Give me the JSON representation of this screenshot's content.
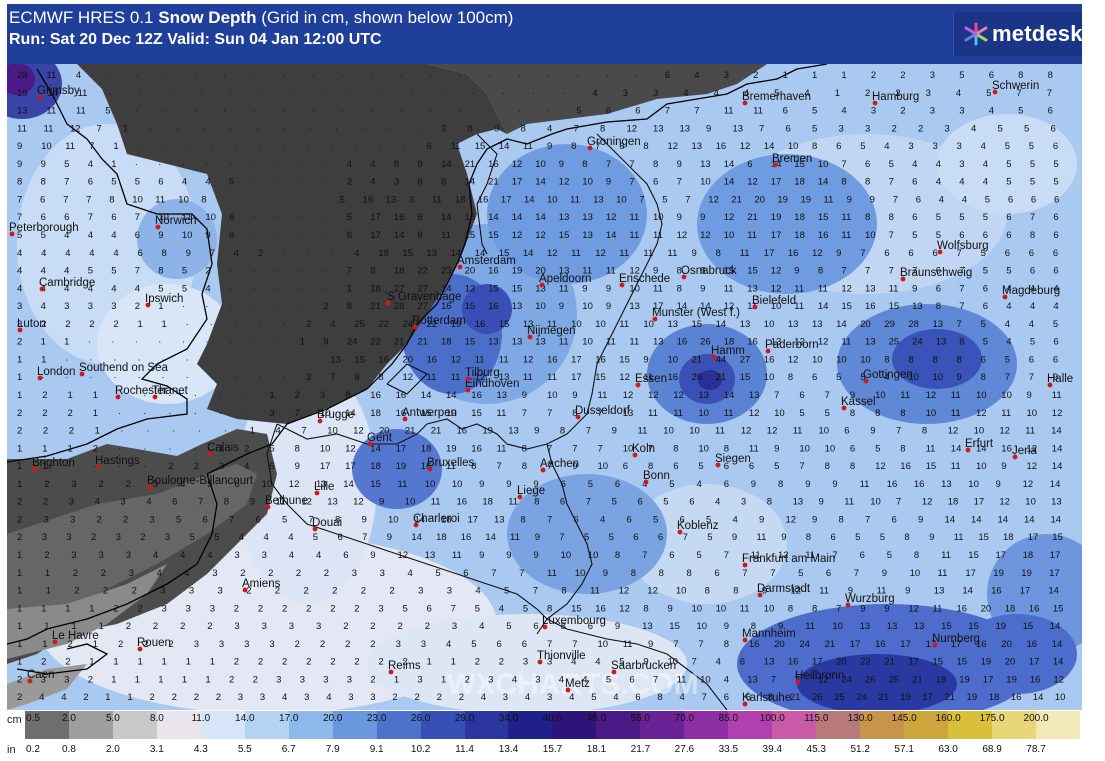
{
  "header": {
    "line1_prefix": "ECMWF HRES 0.1 ",
    "line1_bold": "Snow Depth",
    "line1_suffix": " (Grid in cm, shown below 100cm)",
    "line2": "Run: Sat 20 Dec 12Z Valid: Sun 04 Jan 12:00 UTC"
  },
  "logo": {
    "text": "metdesk",
    "icon": "metdesk-star-icon"
  },
  "watermark": "WXCHARTS.COM",
  "map": {
    "cities": [
      {
        "name": "Grimsby"
      },
      {
        "name": "Peterborough"
      },
      {
        "name": "Norwich"
      },
      {
        "name": "Cambridge"
      },
      {
        "name": "Ipswich"
      },
      {
        "name": "Luton"
      },
      {
        "name": "London"
      },
      {
        "name": "Southend on Sea"
      },
      {
        "name": "Thanet"
      },
      {
        "name": "Rochester"
      },
      {
        "name": "Brighton"
      },
      {
        "name": "Hastings"
      },
      {
        "name": "Calais"
      },
      {
        "name": "Boulogne-Billancourt"
      },
      {
        "name": "Bethune"
      },
      {
        "name": "Lille"
      },
      {
        "name": "Douai"
      },
      {
        "name": "Amiens"
      },
      {
        "name": "Le Havre"
      },
      {
        "name": "Rouen"
      },
      {
        "name": "Caen"
      },
      {
        "name": "Reims"
      },
      {
        "name": "Metz"
      },
      {
        "name": "Thionville"
      },
      {
        "name": "Luxembourg"
      },
      {
        "name": "Saarbrucken"
      },
      {
        "name": "Charleroi"
      },
      {
        "name": "Bruxelles"
      },
      {
        "name": "Gent"
      },
      {
        "name": "Brugge"
      },
      {
        "name": "Antwerpen"
      },
      {
        "name": "Liege"
      },
      {
        "name": "Aachen"
      },
      {
        "name": "Bonn"
      },
      {
        "name": "Koln"
      },
      {
        "name": "Koblenz"
      },
      {
        "name": "Siegen"
      },
      {
        "name": "Dusseldorf"
      },
      {
        "name": "Essen"
      },
      {
        "name": "Eindhoven"
      },
      {
        "name": "Tilburg"
      },
      {
        "name": "Nijmegen"
      },
      {
        "name": "Rotterdam"
      },
      {
        "name": "'S Gravenhage"
      },
      {
        "name": "Amsterdam"
      },
      {
        "name": "Apeldoorn"
      },
      {
        "name": "Enschede"
      },
      {
        "name": "Groningen"
      },
      {
        "name": "Munster (West f.)"
      },
      {
        "name": "Osnabruck"
      },
      {
        "name": "Bielefeld"
      },
      {
        "name": "Paderborn"
      },
      {
        "name": "Hamm"
      },
      {
        "name": "Kassel"
      },
      {
        "name": "Gottingen"
      },
      {
        "name": "Bremerhaven"
      },
      {
        "name": "Bremen"
      },
      {
        "name": "Hamburg"
      },
      {
        "name": "Schwerin"
      },
      {
        "name": "Wolfsburg"
      },
      {
        "name": "Braunschweig"
      },
      {
        "name": "Magdeburg"
      },
      {
        "name": "Halle"
      },
      {
        "name": "Erfurt"
      },
      {
        "name": "Jena"
      },
      {
        "name": "Frankfurt am Main"
      },
      {
        "name": "Darmstadt"
      },
      {
        "name": "Mannheim"
      },
      {
        "name": "Wurzburg"
      },
      {
        "name": "Nurnberg"
      },
      {
        "name": "Heilbronn"
      },
      {
        "name": "Karlsruhe"
      }
    ]
  },
  "legend": {
    "cm_label": "cm",
    "in_label": "in",
    "cm_values": [
      "0.5",
      "2.0",
      "5.0",
      "8.0",
      "11.0",
      "14.0",
      "17.0",
      "20.0",
      "23.0",
      "26.0",
      "29.0",
      "34.0",
      "40.0",
      "46.0",
      "55.0",
      "70.0",
      "85.0",
      "100.0",
      "115.0",
      "130.0",
      "145.0",
      "160.0",
      "175.0",
      "200.0"
    ],
    "in_values": [
      "0.2",
      "0.8",
      "2.0",
      "3.1",
      "4.3",
      "5.5",
      "6.7",
      "7.9",
      "9.1",
      "10.2",
      "11.4",
      "13.4",
      "15.7",
      "18.1",
      "21.7",
      "27.6",
      "33.5",
      "39.4",
      "45.3",
      "51.2",
      "57.1",
      "63.0",
      "68.9",
      "78.7"
    ],
    "colors": [
      "#6e6e6e",
      "#9e9e9e",
      "#c9c9c9",
      "#ece4ec",
      "#d6e6f8",
      "#b4d2f2",
      "#8db8ea",
      "#6a98de",
      "#4b73cc",
      "#3650b8",
      "#2a35a0",
      "#20208a",
      "#2e1478",
      "#4a1a88",
      "#6a2396",
      "#8e2ea4",
      "#b040ae",
      "#c85aa8",
      "#b87a78",
      "#c6944c",
      "#cca63a",
      "#d8c038",
      "#e8d678",
      "#f2e8b8"
    ]
  },
  "grid_values": [
    "28 11 4 . . . . . . . . . . . . . . . . . . . 6 4 3 2 1 1 1 2 2 3 5 6 8 8",
    "19 14 11 . . . . . . . . . . . . . . . . 4 3 3 4 4 4 5 4 1 2 2 3 4 5 7 7",
    "13 11 11 5 . . . . . . . . . . . . . . . 5 6 6 7 7 11 11 6 5 4 3 2 3 3 4 5 6",
    "11 11 12 7 1 . . . . . . . . . . . 3 8 9 8 4 7 8 12 13 13 9 13 7 6 5 3 3 2 2 3 4 5 5 6",
    "9 10 11 7 1 . . . . . . . . . . . . 6 11 15 14 11 9 8 7 6 8 12 13 16 12 14 10 8 6 5 4 3 3 3 4 5 5 6",
    "9 9 5 4 1 . . . . . . . . . 4 4 8 9 14 21 16 12 10 9 8 7 7 8 9 13 14 6 14 15 10 7 6 5 4 4 3 4 5 5 5",
    "8 8 7 6 5 5 6 4 4 5 . . . . 2 4 3 6 8 14 21 17 14 12 10 9 7 6 7 10 14 12 17 18 14 8 8 7 6 4 4 4 5 5 5",
    "7 6 7 7 8 10 11 10 8 . . . . . 5 16 13 3 11 18 16 17 14 10 11 13 10 7 5 7 12 21 20 19 19 11 9 9 7 6 4 4 5 6 6 6",
    "7 6 6 7 6 7 10 11 10 6 . . . . 5 17 16 6 14 16 14 14 14 13 13 12 11 10 9 9 12 21 19 18 15 11 8 8 6 5 5 5 6 7 6",
    "5 5 4 4 4 6 9 10 9 6 . . . . 6 17 14 6 11 15 15 12 12 15 13 14 11 11 12 12 10 11 17 18 16 11 10 7 5 5 6 6 6 8 6",
    "4 4 4 4 4 6 8 9 7 4 2 . . . 4 18 15 13 14 14 15 14 12 11 12 11 11 11 9 8 11 17 16 12 9 7 6 6 6 7 5 6 6 6",
    "4 4 4 5 5 7 8 5 2 . . . . . 7 8 18 22 23 20 16 19 20 13 11 11 12 9 8 8 15 15 12 9 8 7 7 7 7 6 7 5 5 6 6",
    "4 4 4 4 4 4 5 5 4 . . . . . 1 18 27 27 14 13 15 15 13 11 9 9 10 11 8 9 11 13 12 11 11 12 13 11 9 6 7 6 4 4 4",
    "3 4 3 3 3 2 1 . . . . . . 2 8 21 28 27 16 15 16 13 10 9 10 9 13 17 14 14 12 11 10 11 14 15 16 15 13 8 7 6 4 4 4",
    "3 2 2 2 2 1 1 . . . . . 2 4 25 22 24 22 19 16 15 13 11 10 10 11 10 13 15 14 13 10 13 13 14 20 29 28 13 7 5 4 4 5",
    "2 1 1 . . . . . . . . . 1 9 24 22 21 21 18 15 13 13 13 11 10 11 11 13 16 26 18 16 13 12 12 11 13 25 24 13 8 5 4 5 6",
    "1 1 . . . . . . . . . . . 13 15 16 20 16 12 11 11 12 16 17 16 15 9 10 21 44 27 16 12 10 10 10 8 8 8 8 6 5 6 6",
    "1 . . . . . . . . . . . 3 7 9 8 12 11 11 12 13 11 11 17 15 12 11 16 28 21 15 10 8 6 5 5 4 10 10 9 8 7 7 9",
    "1 2 1 1 . . . . . . 1 2 3 8 16 16 14 14 16 13 9 10 9 11 12 12 12 13 14 13 7 6 7 9 10 11 12 11 10 10 9 11",
    "2 2 2 1 . . . . . . 3 7 10 14 18 16 15 19 15 11 7 7 8 7 13 11 11 10 11 12 10 5 5 8 8 8 10 11 12 11 10 12",
    "2 2 2 1 . . . . . 1 4 7 10 12 20 21 21 16 19 13 9 8 7 9 11 10 10 11 12 12 11 10 6 9 7 8 12 10 12 11 14",
    "1 1 1 2 . . . . 1 2 5 8 10 12 14 17 18 19 16 11 8 7 7 7 10 7 8 10 8 11 9 10 10 6 5 8 11 14 14 16 12 14",
    "1 1 . . . . 2 2 3 4 5 9 17 17 18 19 16 11 8 7 8 7 9 10 6 8 6 5 6 6 5 7 8 8 12 16 15 11 10 9 12 14",
    "1 2 3 2 2 3 4 5 6 10 12 13 14 15 11 10 10 9 9 9 6 5 6 4 5 4 6 9 8 9 9 11 16 16 13 10 9 12 14",
    "2 2 3 4 3 4 6 7 8 9 11 12 13 12 9 10 11 16 18 11 8 6 7 5 6 5 6 4 3 8 13 9 11 10 7 12 18 17 12 10 13",
    "2 3 3 2 2 3 5 6 7 6 5 7 8 9 10 14 18 17 13 8 7 6 4 6 5 6 5 4 9 12 9 8 7 6 9 14 14 14 14 14",
    "2 3 3 2 3 2 3 5 5 4 4 4 5 6 7 9 14 18 16 14 11 9 7 5 5 6 6 7 5 9 11 9 8 6 5 5 8 9 11 15 18 17 15",
    "1 2 3 3 3 4 4 4 3 3 4 4 6 9 12 13 11 9 9 9 10 10 8 7 6 5 7 11 12 11 7 6 5 8 11 15 17 18 17",
    "1 1 2 2 3 4 4 3 2 2 2 2 3 3 4 5 6 7 7 11 10 9 8 8 8 6 7 7 5 6 7 9 10 11 17 19 19 17",
    "1 1 2 2 2 3 3 3 2 2 2 2 2 2 3 3 4 5 7 8 11 12 12 10 8 8 9 12 11 9 11 9 13 14 16 17 14",
    "1 1 1 1 2 2 3 3 3 2 2 2 2 2 2 3 5 6 7 5 4 5 8 15 16 12 8 9 10 10 11 10 8 8 7 9 9 12 11 16 20 18 16 15",
    "1 1 1 1 2 2 2 2 3 3 3 3 2 2 2 2 3 4 5 6 8 6 9 13 15 10 9 8 9 11 10 13 13 13 15 15 19 15 14",
    "1 1 2 1 2 2 2 3 3 3 3 2 2 2 2 3 3 4 5 6 6 7 7 10 11 9 7 7 8 16 20 24 21 17 16 17 17 17 16 20 16 14",
    "1 2 2 1 1 1 1 1 1 2 2 2 2 2 2 2 2 1 1 2 2 3 3 4 4 5 9 10 7 4 6 13 16 17 20 22 21 17 15 15 19 20 17 14",
    "2 3 3 2 1 1 1 1 1 2 2 3 3 3 3 2 1 3 1 2 3 4 3 4 4 5 6 7 11 10 4 13 7 7 12 24 26 25 21 19 19 17 19 16 12",
    "2 4 4 2 1 1 2 2 2 2 3 3 4 3 4 3 3 2 2 2 2 4 3 4 3 4 5 4 6 8 4 7 6 6 8 21 26 25 24 21 19 17 21 19 18 16 14 10"
  ]
}
